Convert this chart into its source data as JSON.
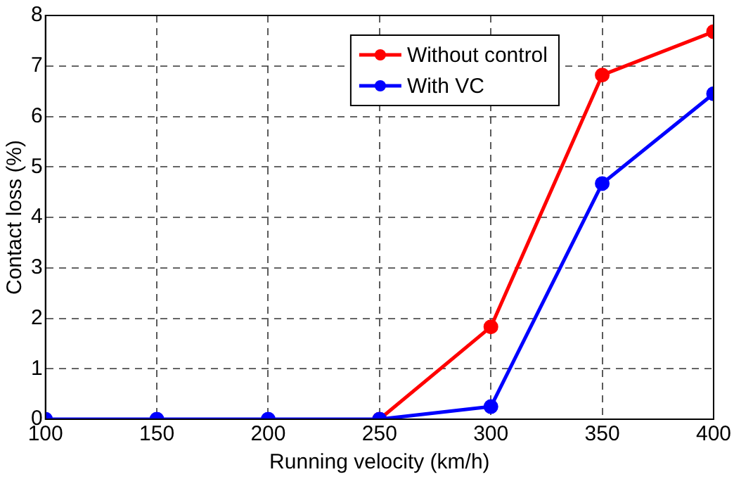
{
  "chart_data": {
    "type": "line",
    "xlabel": "Running velocity (km/h)",
    "ylabel": "Contact loss (%)",
    "x": [
      100,
      150,
      200,
      250,
      300,
      350,
      400
    ],
    "series": [
      {
        "name": "Without control",
        "color": "#ff0000",
        "values": [
          null,
          null,
          null,
          0,
          1.83,
          6.82,
          7.68
        ]
      },
      {
        "name": "With VC",
        "color": "#0000ff",
        "values": [
          0,
          0,
          0,
          0,
          0.25,
          4.67,
          6.45
        ]
      }
    ],
    "xlim": [
      100,
      400
    ],
    "xticks": [
      100,
      150,
      200,
      250,
      300,
      350,
      400
    ],
    "ylim": [
      0,
      8
    ],
    "yticks": [
      0,
      1,
      2,
      3,
      4,
      5,
      6,
      7,
      8
    ],
    "grid": true,
    "legend": "top right",
    "marker": "circle",
    "line_style": "solid"
  }
}
